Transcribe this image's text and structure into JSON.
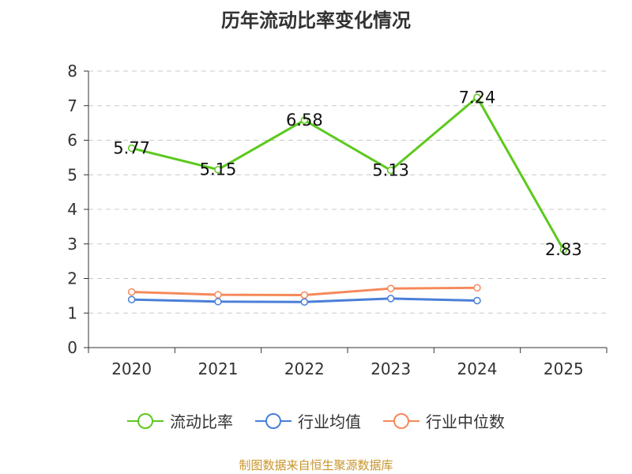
{
  "chart_data": {
    "type": "line",
    "title": "历年流动比率变化情况",
    "categories": [
      "2020",
      "2021",
      "2022",
      "2023",
      "2024",
      "2025"
    ],
    "ylim": [
      0,
      8
    ],
    "yticks": [
      "0",
      "1",
      "2",
      "3",
      "4",
      "5",
      "6",
      "7",
      "8"
    ],
    "grid": true,
    "legend_position": "bottom",
    "series": [
      {
        "name": "流动比率",
        "color": "#5cc91e",
        "values": [
          5.77,
          5.15,
          6.58,
          5.13,
          7.24,
          2.83
        ],
        "labels": [
          "5.77",
          "5.15",
          "6.58",
          "5.13",
          "7.24",
          "2.83"
        ]
      },
      {
        "name": "行业均值",
        "color": "#4a7fd8",
        "values": [
          1.39,
          1.33,
          1.32,
          1.42,
          1.36,
          null
        ]
      },
      {
        "name": "行业中位数",
        "color": "#f5895a",
        "values": [
          1.61,
          1.53,
          1.52,
          1.71,
          1.73,
          null
        ]
      }
    ]
  },
  "source_text": "制图数据来自恒生聚源数据库"
}
